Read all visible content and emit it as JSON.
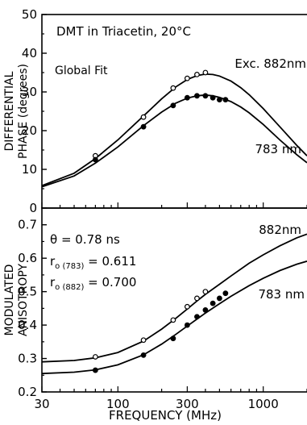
{
  "chart_data": [
    {
      "type": "line",
      "panel": "top",
      "title": "DMT in Triacetin, 20°C",
      "subtitle": "Global Fit",
      "ylabel": "DIFFERENTIAL",
      "ylabel2": "PHASE (degrees)",
      "xlabel": "",
      "x_scale": "log",
      "xlim": [
        30,
        2000
      ],
      "ylim": [
        0,
        50
      ],
      "yticks": [
        0,
        10,
        20,
        30,
        40,
        50
      ],
      "yticklabels": [
        "0",
        "10",
        "20",
        "30",
        "40",
        "50"
      ],
      "series": [
        {
          "name": "Exc. 882nm",
          "marker": "open-circle",
          "points": [
            [
              70,
              13.5
            ],
            [
              150,
              23.5
            ],
            [
              240,
              31
            ],
            [
              300,
              33.5
            ],
            [
              350,
              34.5
            ],
            [
              400,
              35
            ]
          ],
          "fit": [
            [
              30,
              5.8
            ],
            [
              50,
              9
            ],
            [
              70,
              12.8
            ],
            [
              100,
              17.6
            ],
            [
              150,
              23.8
            ],
            [
              200,
              28.2
            ],
            [
              250,
              31.3
            ],
            [
              300,
              33.2
            ],
            [
              350,
              34.2
            ],
            [
              400,
              34.6
            ],
            [
              450,
              34.5
            ],
            [
              500,
              34.1
            ],
            [
              600,
              32.8
            ],
            [
              700,
              31.1
            ],
            [
              800,
              29.3
            ],
            [
              1000,
              25.7
            ],
            [
              1300,
              21
            ],
            [
              1700,
              16.2
            ],
            [
              2000,
              13.5
            ]
          ]
        },
        {
          "name": "783 nm",
          "marker": "filled-circle",
          "points": [
            [
              70,
              12.5
            ],
            [
              150,
              21
            ],
            [
              240,
              26.5
            ],
            [
              300,
              28.5
            ],
            [
              350,
              29
            ],
            [
              400,
              29
            ],
            [
              450,
              28.5
            ],
            [
              500,
              28
            ],
            [
              550,
              28
            ]
          ],
          "fit": [
            [
              30,
              5.5
            ],
            [
              50,
              8.3
            ],
            [
              70,
              11.6
            ],
            [
              100,
              15.8
            ],
            [
              150,
              21.3
            ],
            [
              200,
              24.8
            ],
            [
              250,
              27.1
            ],
            [
              300,
              28.4
            ],
            [
              350,
              29
            ],
            [
              400,
              29.2
            ],
            [
              450,
              29
            ],
            [
              500,
              28.6
            ],
            [
              600,
              27.5
            ],
            [
              700,
              26.1
            ],
            [
              800,
              24.6
            ],
            [
              1000,
              21.6
            ],
            [
              1300,
              17.6
            ],
            [
              1700,
              13.8
            ],
            [
              2000,
              11.7
            ]
          ]
        }
      ]
    },
    {
      "type": "line",
      "panel": "bottom",
      "ylabel": "MODULATED",
      "ylabel2": "ANISOTROPY",
      "xlabel": "FREQUENCY (MHz)",
      "x_scale": "log",
      "xlim": [
        30,
        2000
      ],
      "ylim": [
        0.2,
        0.75
      ],
      "xticks": [
        30,
        100,
        300,
        1000
      ],
      "xticklabels": [
        "30",
        "100",
        "300",
        "1000"
      ],
      "yticks": [
        0.2,
        0.3,
        0.4,
        0.5,
        0.6,
        0.7
      ],
      "yticklabels": [
        "0.2",
        "0.3",
        "0.4",
        "0.5",
        "0.6",
        "0.7"
      ],
      "annotations": [
        "θ = 0.78 ns",
        "r0 (783) = 0.611",
        "r0 (882) = 0.700"
      ],
      "annotation_parts": [
        {
          "main": "θ = 0.78 ns"
        },
        {
          "main": "r",
          "sub": "o (783)",
          "tail": " = 0.611"
        },
        {
          "main": "r",
          "sub": "o (882)",
          "tail": " = 0.700"
        }
      ],
      "series": [
        {
          "name": "882nm",
          "marker": "open-circle",
          "points": [
            [
              70,
              0.305
            ],
            [
              150,
              0.355
            ],
            [
              240,
              0.415
            ],
            [
              300,
              0.455
            ],
            [
              350,
              0.48
            ],
            [
              400,
              0.5
            ]
          ],
          "fit": [
            [
              30,
              0.29
            ],
            [
              50,
              0.294
            ],
            [
              70,
              0.302
            ],
            [
              100,
              0.318
            ],
            [
              150,
              0.352
            ],
            [
              200,
              0.388
            ],
            [
              250,
              0.42
            ],
            [
              300,
              0.448
            ],
            [
              350,
              0.472
            ],
            [
              400,
              0.492
            ],
            [
              500,
              0.522
            ],
            [
              600,
              0.547
            ],
            [
              800,
              0.585
            ],
            [
              1000,
              0.61
            ],
            [
              1300,
              0.637
            ],
            [
              1700,
              0.661
            ],
            [
              2000,
              0.672
            ]
          ]
        },
        {
          "name": "783 nm",
          "marker": "filled-circle",
          "points": [
            [
              70,
              0.265
            ],
            [
              150,
              0.31
            ],
            [
              240,
              0.36
            ],
            [
              300,
              0.4
            ],
            [
              350,
              0.425
            ],
            [
              400,
              0.445
            ],
            [
              450,
              0.465
            ],
            [
              500,
              0.48
            ],
            [
              550,
              0.495
            ]
          ],
          "fit": [
            [
              30,
              0.255
            ],
            [
              50,
              0.259
            ],
            [
              70,
              0.266
            ],
            [
              100,
              0.281
            ],
            [
              150,
              0.311
            ],
            [
              200,
              0.343
            ],
            [
              250,
              0.372
            ],
            [
              300,
              0.397
            ],
            [
              350,
              0.418
            ],
            [
              400,
              0.436
            ],
            [
              500,
              0.464
            ],
            [
              600,
              0.486
            ],
            [
              800,
              0.518
            ],
            [
              1000,
              0.54
            ],
            [
              1300,
              0.563
            ],
            [
              1700,
              0.582
            ],
            [
              2000,
              0.591
            ]
          ]
        }
      ]
    }
  ]
}
